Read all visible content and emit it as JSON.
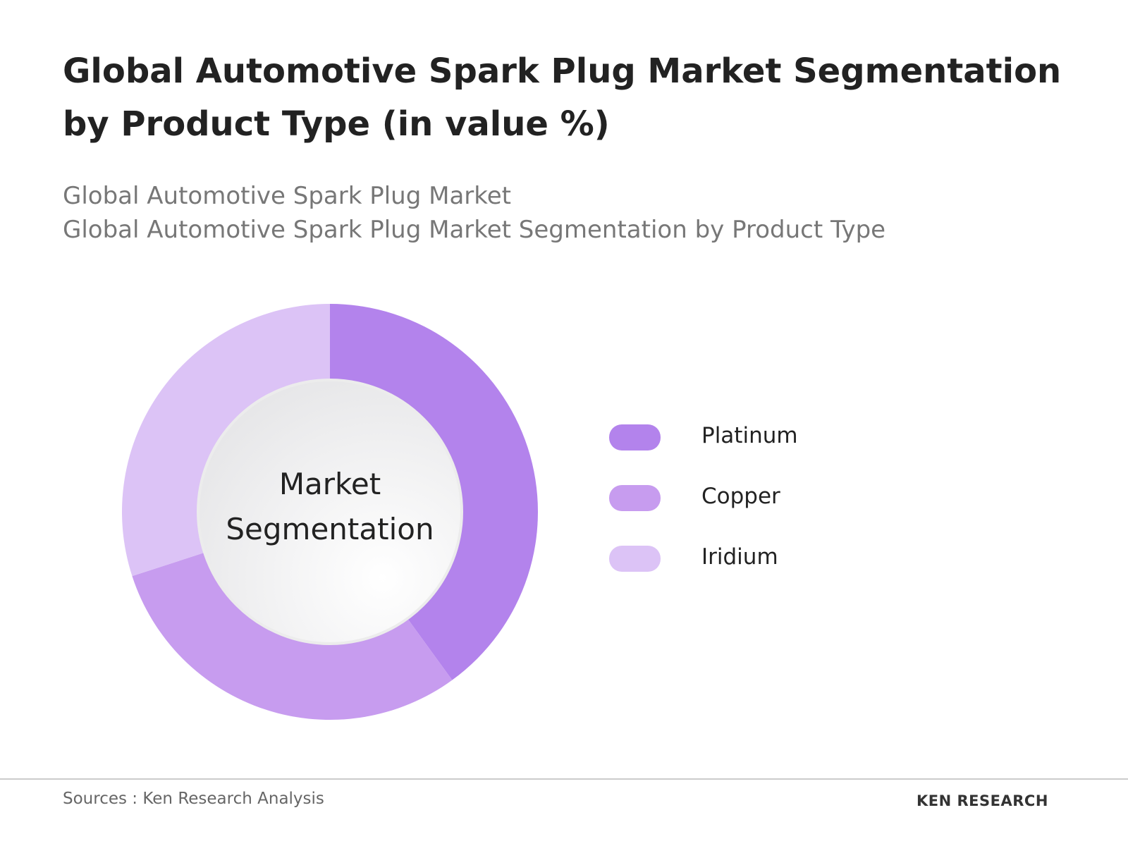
{
  "chart_data": {
    "type": "donut",
    "title": "Global Automotive Spark Plug Market Segmentation by Product Type (in value %)",
    "subtitle": [
      "Global Automotive Spark Plug Market",
      "Global Automotive Spark Plug Market Segmentation by Product Type"
    ],
    "center_label": "Market Segmentation",
    "series": [
      {
        "name": "Platinum",
        "color": "#b383ec",
        "values": [
          40
        ]
      },
      {
        "name": "Copper",
        "color": "#c79cef",
        "values": [
          30
        ]
      },
      {
        "name": "Iridium",
        "color": "#dcc3f6",
        "values": [
          30
        ]
      }
    ],
    "legend": "right",
    "source": "Sources : Ken Research Analysis",
    "logo": "KEN RESEARCH"
  }
}
